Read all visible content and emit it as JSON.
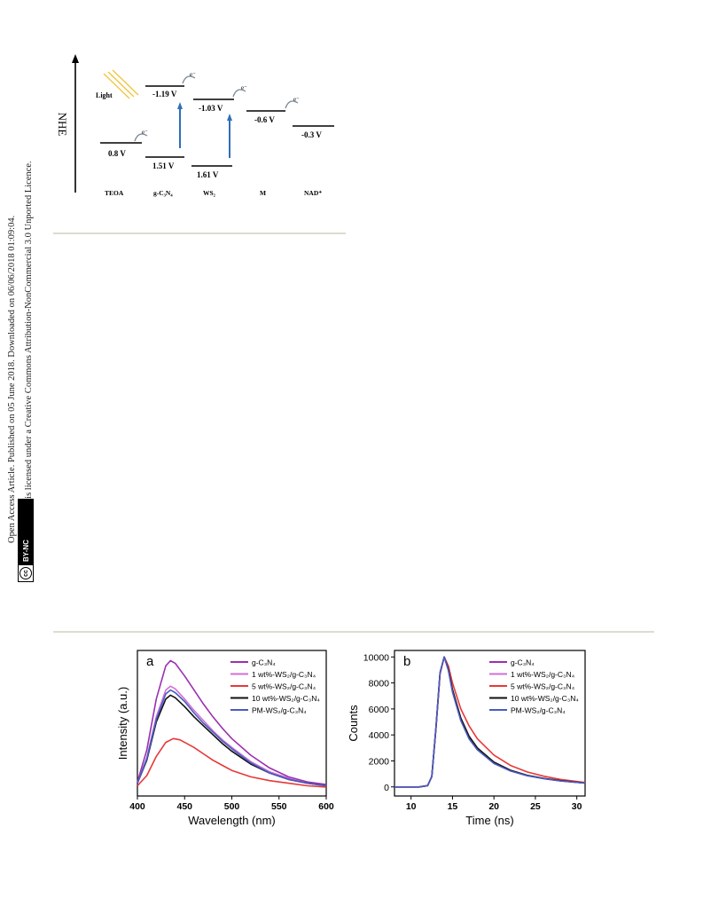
{
  "sidebar": {
    "line1": "Open Access Article. Published on 05 June 2018. Downloaded on 06/06/2018 01:09:04.",
    "line2": "This article is licensed under a Creative Commons Attribution-NonCommercial 3.0 Unported Licence.",
    "badge_cc": "cc",
    "badge_text": "BY-NC"
  },
  "energy_diagram": {
    "axis_label": "NHE",
    "light_label": "Light",
    "electron_label": "e⁻",
    "levels": [
      {
        "species": "TEOA",
        "value": "0.8 V"
      },
      {
        "species": "g-C₃N₄",
        "value": "-1.19 V"
      },
      {
        "species": "g-C₃N₄",
        "value": "1.51 V"
      },
      {
        "species": "WS₂",
        "value": "-1.03 V"
      },
      {
        "species": "WS₂",
        "value": "1.61 V"
      },
      {
        "species": "M",
        "value": "-0.6 V"
      },
      {
        "species": "NAD⁺",
        "value": "-0.3 V"
      }
    ],
    "species_labels": [
      "TEOA",
      "g-C₃N₄",
      "WS₂",
      "M",
      "NAD⁺"
    ]
  },
  "chart_data": [
    {
      "type": "line",
      "panel_label": "a",
      "xlabel": "Wavelength (nm)",
      "ylabel": "Intensity (a.u.)",
      "xlim": [
        400,
        600
      ],
      "xticks": [
        400,
        450,
        500,
        550,
        600
      ],
      "legend_position": "top-right",
      "series": [
        {
          "name": "g-C₃N₄",
          "color": "#9b30b0",
          "x": [
            400,
            410,
            420,
            430,
            435,
            440,
            450,
            460,
            470,
            480,
            490,
            500,
            520,
            540,
            560,
            580,
            600
          ],
          "y": [
            0.05,
            0.3,
            0.7,
            0.96,
            1.0,
            0.98,
            0.88,
            0.77,
            0.66,
            0.56,
            0.47,
            0.39,
            0.26,
            0.16,
            0.09,
            0.05,
            0.03
          ]
        },
        {
          "name": "1 wt%-WS₂/g-C₃N₄",
          "color": "#d070d8",
          "x": [
            400,
            410,
            420,
            430,
            435,
            440,
            450,
            460,
            470,
            480,
            490,
            500,
            520,
            540,
            560,
            580,
            600
          ],
          "y": [
            0.04,
            0.24,
            0.56,
            0.77,
            0.8,
            0.78,
            0.7,
            0.61,
            0.53,
            0.45,
            0.38,
            0.32,
            0.21,
            0.13,
            0.08,
            0.04,
            0.02
          ]
        },
        {
          "name": "5 wt%-WS₂/g-C₃N₄",
          "color": "#e83838",
          "x": [
            400,
            410,
            420,
            430,
            438,
            445,
            450,
            460,
            470,
            480,
            490,
            500,
            520,
            540,
            560,
            580,
            600
          ],
          "y": [
            0.02,
            0.1,
            0.25,
            0.36,
            0.39,
            0.38,
            0.36,
            0.32,
            0.27,
            0.22,
            0.18,
            0.14,
            0.09,
            0.06,
            0.04,
            0.02,
            0.01
          ]
        },
        {
          "name": "10 wt%-WS₂/g-C₃N₄",
          "color": "#111111",
          "x": [
            400,
            410,
            420,
            430,
            435,
            440,
            450,
            460,
            470,
            480,
            490,
            500,
            520,
            540,
            560,
            580,
            600
          ],
          "y": [
            0.04,
            0.22,
            0.52,
            0.7,
            0.73,
            0.71,
            0.64,
            0.56,
            0.49,
            0.42,
            0.35,
            0.29,
            0.19,
            0.12,
            0.07,
            0.04,
            0.02
          ]
        },
        {
          "name": "PM-WS₂/g-C₃N₄",
          "color": "#4a5cc0",
          "x": [
            400,
            410,
            420,
            430,
            435,
            440,
            450,
            460,
            470,
            480,
            490,
            500,
            520,
            540,
            560,
            580,
            600
          ],
          "y": [
            0.04,
            0.23,
            0.54,
            0.74,
            0.77,
            0.75,
            0.68,
            0.59,
            0.51,
            0.44,
            0.37,
            0.31,
            0.2,
            0.12,
            0.07,
            0.04,
            0.02
          ]
        }
      ]
    },
    {
      "type": "line",
      "panel_label": "b",
      "xlabel": "Time (ns)",
      "ylabel": "Counts",
      "xlim": [
        8,
        31
      ],
      "ylim": [
        -700,
        10500
      ],
      "xticks": [
        10,
        15,
        20,
        25,
        30
      ],
      "yticks": [
        0,
        2000,
        4000,
        6000,
        8000,
        10000
      ],
      "legend_position": "top-right",
      "series": [
        {
          "name": "g-C₃N₄",
          "color": "#9b30b0",
          "x": [
            8,
            11,
            12,
            12.5,
            13,
            13.5,
            14,
            14.5,
            15,
            16,
            17,
            18,
            20,
            22,
            24,
            26,
            28,
            31
          ],
          "y": [
            0,
            0,
            100,
            800,
            4500,
            8800,
            10000,
            9000,
            7400,
            5200,
            3800,
            2900,
            1850,
            1250,
            880,
            640,
            470,
            300
          ]
        },
        {
          "name": "1 wt%-WS₂/g-C₃N₄",
          "color": "#d070d8",
          "x": [
            8,
            11,
            12,
            12.5,
            13,
            13.5,
            14,
            14.5,
            15,
            16,
            17,
            18,
            20,
            22,
            24,
            26,
            28,
            31
          ],
          "y": [
            0,
            0,
            100,
            800,
            4500,
            8800,
            10000,
            9000,
            7400,
            5200,
            3800,
            2900,
            1850,
            1250,
            880,
            640,
            470,
            300
          ]
        },
        {
          "name": "5 wt%-WS₂/g-C₃N₄",
          "color": "#e83838",
          "x": [
            8,
            11,
            12,
            12.5,
            13,
            13.5,
            14,
            14.5,
            15,
            16,
            17,
            18,
            20,
            22,
            24,
            26,
            28,
            31
          ],
          "y": [
            0,
            0,
            100,
            800,
            4400,
            8700,
            10000,
            9300,
            8000,
            6000,
            4700,
            3700,
            2450,
            1650,
            1150,
            820,
            580,
            340
          ]
        },
        {
          "name": "10 wt%-WS₂/g-C₃N₄",
          "color": "#111111",
          "x": [
            8,
            11,
            12,
            12.5,
            13,
            13.5,
            14,
            14.5,
            15,
            16,
            17,
            18,
            20,
            22,
            24,
            26,
            28,
            31
          ],
          "y": [
            0,
            0,
            100,
            800,
            4500,
            8800,
            10000,
            9050,
            7500,
            5300,
            3900,
            3000,
            1900,
            1280,
            900,
            650,
            480,
            300
          ]
        },
        {
          "name": "PM-WS₂/g-C₃N₄",
          "color": "#4a5cc0",
          "x": [
            8,
            11,
            12,
            12.5,
            13,
            13.5,
            14,
            14.5,
            15,
            16,
            17,
            18,
            20,
            22,
            24,
            26,
            28,
            31
          ],
          "y": [
            0,
            0,
            100,
            800,
            4500,
            8800,
            10000,
            8950,
            7300,
            5100,
            3700,
            2850,
            1800,
            1220,
            860,
            630,
            460,
            290
          ]
        }
      ]
    }
  ]
}
